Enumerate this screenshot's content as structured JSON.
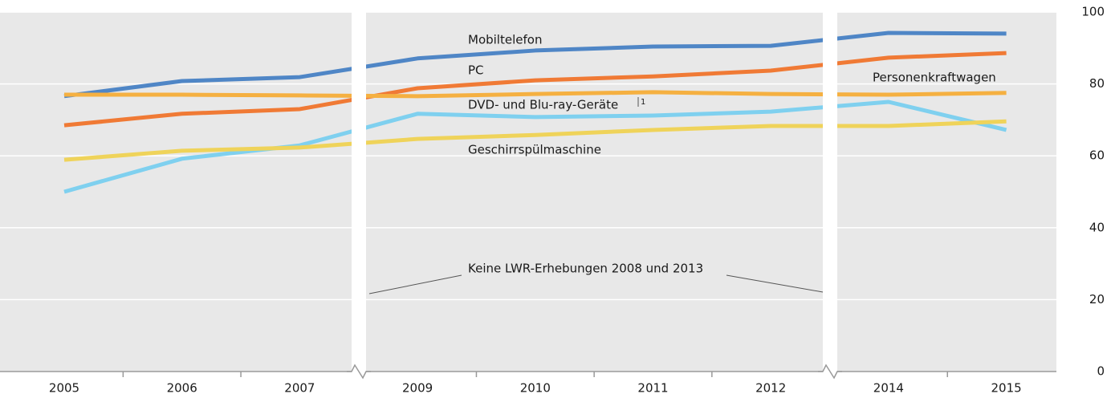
{
  "chart_data": {
    "type": "line",
    "categories": [
      "2005",
      "2006",
      "2007",
      "2009",
      "2010",
      "2011",
      "2012",
      "2014",
      "2015"
    ],
    "series": [
      {
        "name": "Mobiltelefon",
        "color": "#4f86c6",
        "values": [
          76.6,
          80.8,
          81.9,
          87.1,
          89.3,
          90.4,
          90.6,
          94.2,
          94.0
        ]
      },
      {
        "name": "PC",
        "color": "#f07a35",
        "values": [
          68.5,
          71.7,
          73.0,
          78.8,
          81.0,
          82.1,
          83.7,
          87.3,
          88.6
        ]
      },
      {
        "name": "Personenkraftwagen",
        "color": "#f5b041",
        "values": [
          77.0,
          77.0,
          76.8,
          76.6,
          77.2,
          77.7,
          77.2,
          77.0,
          77.5
        ]
      },
      {
        "name": "DVD- und Blu-ray-Geräte",
        "note_ref": "1",
        "color": "#7fd0ef",
        "values": [
          50.0,
          59.2,
          62.9,
          71.7,
          70.8,
          71.2,
          72.3,
          75.0,
          67.2
        ]
      },
      {
        "name": "Geschirrspülmaschine",
        "color": "#efd35a",
        "values": [
          58.9,
          61.4,
          62.3,
          64.7,
          65.8,
          67.2,
          68.3,
          68.3,
          69.6
        ]
      }
    ],
    "annotation": "Keine LWR-Erhebungen 2008 und 2013",
    "ylim": [
      0,
      100
    ],
    "yticks": [
      0,
      20,
      40,
      60,
      80,
      100
    ],
    "grid": true
  }
}
